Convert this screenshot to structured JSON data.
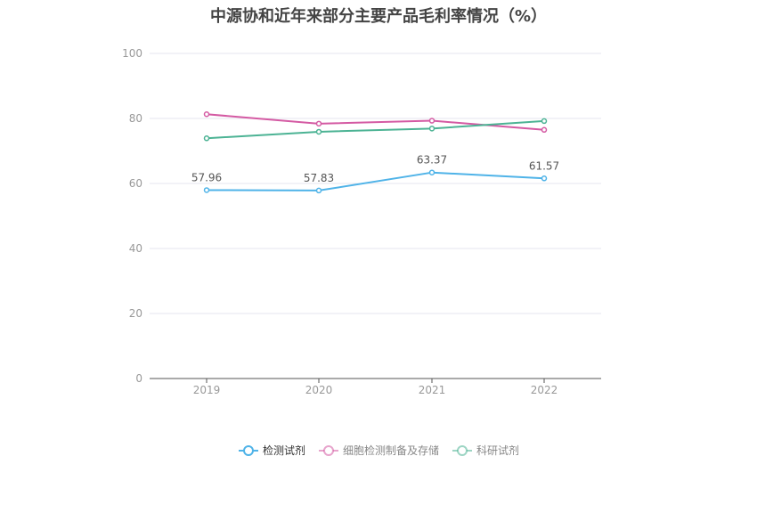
{
  "chart_data": {
    "type": "line",
    "title": "中源协和近年来部分主要产品毛利率情况（%）",
    "categories": [
      "2019",
      "2020",
      "2021",
      "2022"
    ],
    "ylim": [
      0,
      100
    ],
    "yticks": [
      0,
      20,
      40,
      60,
      80,
      100
    ],
    "grid": true,
    "legend_position": "bottom",
    "series": [
      {
        "name": "检测试剂",
        "color": "#4fb3e8",
        "values": [
          57.96,
          57.83,
          63.37,
          61.57
        ],
        "labels": [
          "57.96",
          "57.83",
          "63.37",
          "61.57"
        ]
      },
      {
        "name": "细胞检测制备及存储",
        "color": "#d45aa3",
        "values": [
          81.3,
          78.4,
          79.3,
          76.5
        ]
      },
      {
        "name": "科研试剂",
        "color": "#4cb394",
        "values": [
          73.9,
          75.9,
          76.9,
          79.2
        ]
      }
    ]
  }
}
